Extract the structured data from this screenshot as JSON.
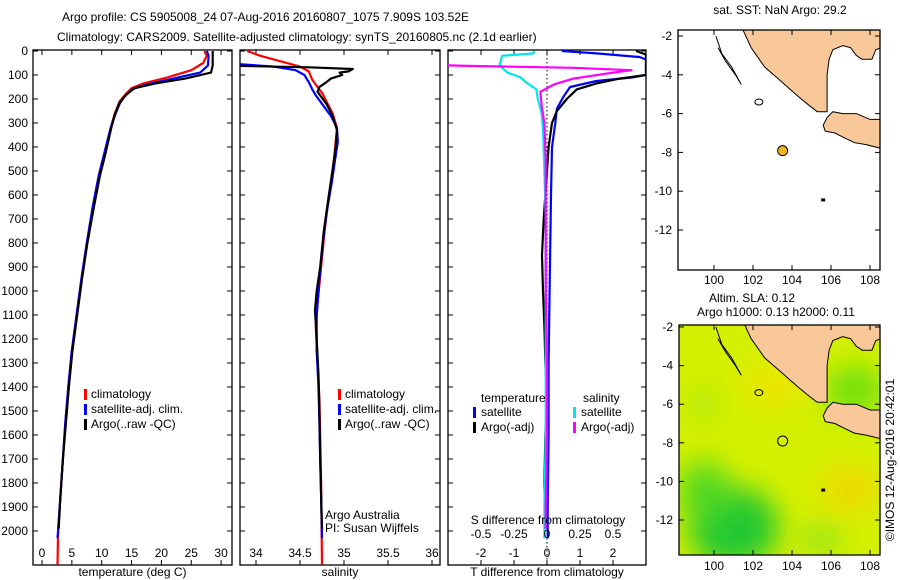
{
  "title": {
    "line1": "Argo profile: CS 5905008_24 07-Aug-2016 20160807_1075 7.909S 103.52E",
    "line2": "Climatology: CARS2009. Satellite-adjusted climatology: synTS_20160805.nc (2.1d earlier)"
  },
  "colors": {
    "climatology": "#ff0000",
    "satellite": "#0000ff",
    "argo": "#000000",
    "sal_satellite": "#00e5ee",
    "sal_argo": "#ff00ff",
    "land": "#f8c898"
  },
  "chart_data": [
    {
      "type": "line",
      "name": "temperature-profile",
      "xlabel": "temperature (deg C)",
      "ylabel": "depth",
      "xlim": [
        -1.5,
        31.7
      ],
      "ylim": [
        0,
        2140
      ],
      "x_ticks": [
        "0",
        "5",
        "10",
        "15",
        "20",
        "25",
        "30"
      ],
      "y_ticks": [
        "0",
        "100",
        "200",
        "300",
        "400",
        "500",
        "600",
        "700",
        "800",
        "900",
        "1000",
        "1100",
        "1200",
        "1300",
        "1400",
        "1500",
        "1600",
        "1700",
        "1800",
        "1900",
        "2000"
      ],
      "legend": [
        "climatology",
        "satellite-adj. clim.",
        "Argo(..raw -QC)"
      ],
      "series": [
        {
          "name": "climatology",
          "color": "#ff0000",
          "points": [
            [
              27.2,
              0
            ],
            [
              27.6,
              20
            ],
            [
              27,
              50
            ],
            [
              25,
              80
            ],
            [
              21,
              110
            ],
            [
              17,
              135
            ],
            [
              15,
              155
            ],
            [
              14,
              180
            ],
            [
              13,
              210
            ],
            [
              12.2,
              260
            ],
            [
              11.5,
              320
            ],
            [
              10.5,
              420
            ],
            [
              9.5,
              520
            ],
            [
              8.5,
              650
            ],
            [
              7.5,
              800
            ],
            [
              6.6,
              950
            ],
            [
              5.8,
              1100
            ],
            [
              5,
              1250
            ],
            [
              4.4,
              1400
            ],
            [
              3.9,
              1550
            ],
            [
              3.5,
              1700
            ],
            [
              3.1,
              1850
            ],
            [
              2.7,
              2000
            ],
            [
              2.6,
              2140
            ]
          ]
        },
        {
          "name": "satellite-adj. clim.",
          "color": "#0000ff",
          "points": [
            [
              27.6,
              0
            ],
            [
              27.9,
              20
            ],
            [
              27.8,
              60
            ],
            [
              26.5,
              90
            ],
            [
              22,
              115
            ],
            [
              17.5,
              140
            ],
            [
              15,
              160
            ],
            [
              13.8,
              190
            ],
            [
              13,
              220
            ],
            [
              12.2,
              270
            ],
            [
              11.5,
              320
            ],
            [
              10.5,
              420
            ],
            [
              9.5,
              520
            ],
            [
              8.5,
              650
            ],
            [
              7.5,
              800
            ],
            [
              6.6,
              950
            ],
            [
              5.8,
              1100
            ],
            [
              5,
              1250
            ],
            [
              4.4,
              1400
            ],
            [
              3.9,
              1550
            ],
            [
              3.5,
              1700
            ],
            [
              3.1,
              1850
            ],
            [
              2.7,
              2000
            ],
            [
              2.6,
              2030
            ]
          ]
        },
        {
          "name": "Argo(..raw -QC)",
          "color": "#000000",
          "points": [
            [
              28.6,
              0
            ],
            [
              28.6,
              60
            ],
            [
              28.3,
              90
            ],
            [
              24,
              115
            ],
            [
              19,
              135
            ],
            [
              15.5,
              155
            ],
            [
              14,
              185
            ],
            [
              13,
              215
            ],
            [
              12.2,
              265
            ],
            [
              11.6,
              320
            ],
            [
              10.7,
              420
            ],
            [
              9.7,
              520
            ],
            [
              8.7,
              650
            ],
            [
              7.6,
              800
            ],
            [
              6.7,
              950
            ],
            [
              5.9,
              1100
            ],
            [
              5.1,
              1250
            ],
            [
              4.5,
              1400
            ],
            [
              4,
              1550
            ],
            [
              3.5,
              1700
            ],
            [
              3.1,
              1850
            ],
            [
              2.8,
              1990
            ]
          ]
        }
      ]
    },
    {
      "type": "line",
      "name": "salinity-profile",
      "xlabel": "salinity",
      "xlim": [
        33.82,
        36.09
      ],
      "ylim": [
        0,
        2140
      ],
      "x_ticks": [
        "34",
        "34.5",
        "35",
        "35.5",
        "36"
      ],
      "legend": [
        "climatology",
        "satellite-adj. clim.",
        "Argo(..raw -QC)"
      ],
      "annotation": [
        "Argo Australia",
        "PI: Susan Wijffels"
      ],
      "series": [
        {
          "name": "climatology",
          "color": "#ff0000",
          "points": [
            [
              33.9,
              0
            ],
            [
              34.05,
              20
            ],
            [
              34.3,
              45
            ],
            [
              34.5,
              65
            ],
            [
              34.6,
              85
            ],
            [
              34.64,
              120
            ],
            [
              34.7,
              150
            ],
            [
              34.76,
              180
            ],
            [
              34.8,
              210
            ],
            [
              34.87,
              260
            ],
            [
              34.92,
              320
            ],
            [
              34.9,
              400
            ],
            [
              34.87,
              500
            ],
            [
              34.83,
              600
            ],
            [
              34.78,
              750
            ],
            [
              34.74,
              900
            ],
            [
              34.7,
              1050
            ],
            [
              34.68,
              1150
            ],
            [
              34.7,
              1300
            ],
            [
              34.72,
              1450
            ],
            [
              34.73,
              1600
            ],
            [
              34.74,
              1800
            ],
            [
              34.75,
              2140
            ]
          ]
        },
        {
          "name": "satellite-adj. clim.",
          "color": "#0000ff",
          "points": [
            [
              33.82,
              55
            ],
            [
              34.2,
              65
            ],
            [
              34.45,
              80
            ],
            [
              34.55,
              100
            ],
            [
              34.6,
              130
            ],
            [
              34.64,
              160
            ],
            [
              34.68,
              185
            ],
            [
              34.75,
              220
            ],
            [
              34.85,
              270
            ],
            [
              34.92,
              320
            ],
            [
              34.93,
              380
            ],
            [
              34.9,
              450
            ],
            [
              34.86,
              550
            ],
            [
              34.8,
              680
            ],
            [
              34.76,
              800
            ],
            [
              34.72,
              950
            ],
            [
              34.69,
              1100
            ],
            [
              34.69,
              1250
            ],
            [
              34.71,
              1400
            ],
            [
              34.72,
              1550
            ],
            [
              34.73,
              1700
            ],
            [
              34.74,
              1850
            ],
            [
              34.75,
              2030
            ]
          ]
        },
        {
          "name": "Argo(..raw -QC)",
          "color": "#000000",
          "points": [
            [
              33.82,
              62
            ],
            [
              34.6,
              68
            ],
            [
              35.1,
              75
            ],
            [
              35.05,
              85
            ],
            [
              34.95,
              90
            ],
            [
              34.98,
              100
            ],
            [
              34.85,
              115
            ],
            [
              34.8,
              130
            ],
            [
              34.72,
              150
            ],
            [
              34.7,
              170
            ],
            [
              34.74,
              190
            ],
            [
              34.8,
              220
            ],
            [
              34.87,
              270
            ],
            [
              34.92,
              330
            ],
            [
              34.9,
              420
            ],
            [
              34.86,
              520
            ],
            [
              34.82,
              620
            ],
            [
              34.77,
              750
            ],
            [
              34.73,
              900
            ],
            [
              34.69,
              1000
            ],
            [
              34.67,
              1080
            ],
            [
              34.69,
              1200
            ],
            [
              34.71,
              1350
            ],
            [
              34.72,
              1500
            ],
            [
              34.73,
              1700
            ],
            [
              34.74,
              1850
            ],
            [
              34.75,
              1990
            ]
          ]
        }
      ]
    },
    {
      "type": "line",
      "name": "difference-profile",
      "xlabel": "T difference from climatology",
      "xlabel2": "S difference from climatology",
      "xlim": [
        -3,
        3
      ],
      "x_ticks": [
        "-2",
        "-1",
        "0",
        "1",
        "2"
      ],
      "x2_ticks": [
        "-0.5",
        "-0.25",
        "0",
        "0.25",
        "0.5"
      ],
      "legend_headers": [
        "temperature",
        "salinity"
      ],
      "legend": [
        "satellite",
        "Argo(-adj)",
        "satellite",
        "Argo(-adj)"
      ],
      "series": [
        {
          "name": "temperature satellite",
          "units": "T",
          "color": "#0000ff",
          "points": [
            [
              0.45,
              0
            ],
            [
              1.5,
              10
            ],
            [
              2.8,
              25
            ],
            [
              3,
              35
            ],
            [
              3,
              100
            ],
            [
              2.6,
              110
            ],
            [
              1.5,
              125
            ],
            [
              0.7,
              150
            ],
            [
              0.5,
              190
            ],
            [
              0.3,
              240
            ],
            [
              0.25,
              300
            ],
            [
              0.15,
              400
            ],
            [
              0.12,
              600
            ],
            [
              0.1,
              800
            ],
            [
              0.08,
              1000
            ],
            [
              0.05,
              1300
            ],
            [
              0.05,
              1600
            ],
            [
              0.02,
              1900
            ],
            [
              0.02,
              2030
            ]
          ]
        },
        {
          "name": "temperature Argo(-adj)",
          "units": "T",
          "color": "#000000",
          "points": [
            [
              2.7,
              0
            ],
            [
              3,
              15
            ],
            [
              3,
              100
            ],
            [
              2.2,
              115
            ],
            [
              1.5,
              135
            ],
            [
              0.9,
              160
            ],
            [
              0.6,
              200
            ],
            [
              0.3,
              250
            ],
            [
              0.15,
              300
            ],
            [
              0.05,
              400
            ],
            [
              0,
              500
            ],
            [
              -0.1,
              700
            ],
            [
              -0.15,
              850
            ],
            [
              -0.12,
              1000
            ],
            [
              -0.08,
              1150
            ],
            [
              -0.05,
              1300
            ],
            [
              0,
              1450
            ],
            [
              -0.05,
              1600
            ],
            [
              -0.08,
              1800
            ],
            [
              -0.05,
              1990
            ]
          ]
        },
        {
          "name": "salinity satellite",
          "units": "S",
          "color": "#00e5ee",
          "points": [
            [
              -0.1,
              0
            ],
            [
              -0.1,
              10
            ],
            [
              -0.34,
              20
            ],
            [
              -0.36,
              60
            ],
            [
              -0.3,
              90
            ],
            [
              -0.2,
              110
            ],
            [
              -0.16,
              130
            ],
            [
              -0.08,
              160
            ],
            [
              -0.07,
              200
            ],
            [
              -0.04,
              260
            ],
            [
              -0.03,
              330
            ],
            [
              -0.02,
              500
            ],
            [
              -0.01,
              700
            ],
            [
              -0.01,
              1000
            ],
            [
              -0.01,
              1300
            ],
            [
              -0.01,
              1600
            ],
            [
              -0.02,
              1900
            ],
            [
              -0.02,
              2030
            ]
          ]
        },
        {
          "name": "salinity Argo(-adj)",
          "units": "S",
          "color": "#ff00ff",
          "points": [
            [
              -0.75,
              60
            ],
            [
              -0.6,
              62
            ],
            [
              0.2,
              70
            ],
            [
              0.64,
              80
            ],
            [
              0.5,
              90
            ],
            [
              0.32,
              105
            ],
            [
              0.2,
              115
            ],
            [
              0.05,
              140
            ],
            [
              -0.05,
              170
            ],
            [
              -0.04,
              230
            ],
            [
              -0.02,
              300
            ],
            [
              -0.01,
              450
            ],
            [
              -0.01,
              700
            ],
            [
              -0.01,
              1000
            ],
            [
              0,
              1300
            ],
            [
              0,
              1600
            ],
            [
              -0.01,
              1900
            ],
            [
              -0.01,
              1990
            ]
          ]
        }
      ]
    }
  ],
  "maps": [
    {
      "name": "sst-map",
      "title": "sat. SST: NaN Argo: 29.2",
      "lon_ticks": [
        "100",
        "102",
        "104",
        "106",
        "108"
      ],
      "lat_ticks": [
        "-2",
        "-4",
        "-6",
        "-8",
        "-10",
        "-12"
      ],
      "argo_position": {
        "lon": 103.52,
        "lat": -7.909
      }
    },
    {
      "name": "sla-map",
      "title1": "Altim. SLA: 0.12",
      "title2": "Argo h1000: 0.13 h2000: 0.11",
      "lon_ticks": [
        "100",
        "102",
        "104",
        "106",
        "108"
      ],
      "lat_ticks": [
        "-2",
        "-4",
        "-6",
        "-8",
        "-10",
        "-12"
      ],
      "argo_position": {
        "lon": 103.52,
        "lat": -7.909
      }
    }
  ],
  "credit": "©IMOS 12-Aug-2016 20:42:01"
}
